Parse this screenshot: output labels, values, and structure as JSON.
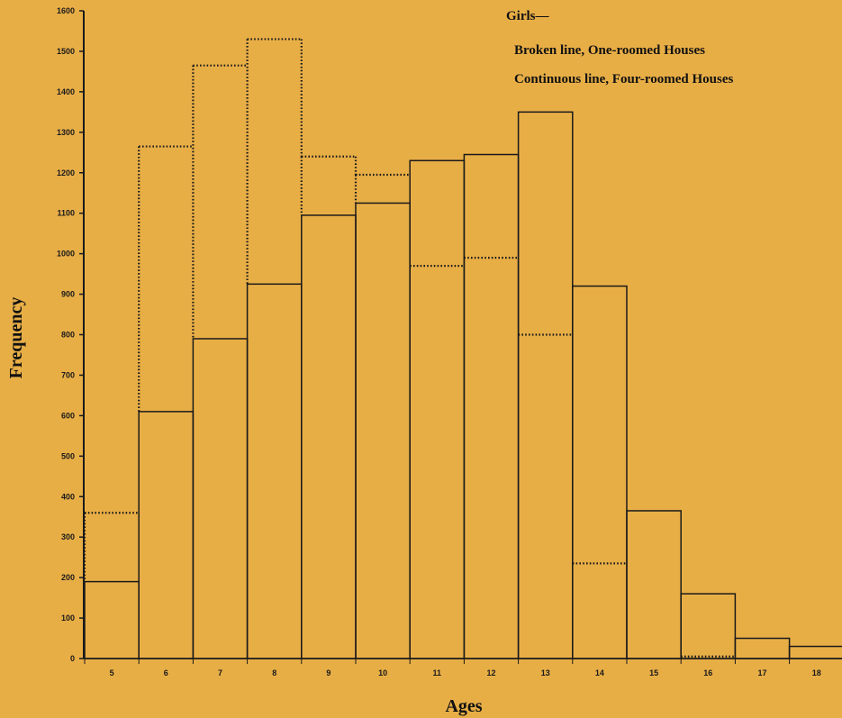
{
  "chart_data": {
    "type": "bar",
    "title": "",
    "xlabel": "Ages",
    "ylabel": "Frequency",
    "ylim": [
      0,
      1600
    ],
    "yticks": [
      0,
      100,
      200,
      300,
      400,
      500,
      600,
      700,
      800,
      900,
      1000,
      1100,
      1200,
      1300,
      1400,
      1500,
      1600
    ],
    "categories": [
      "5",
      "6",
      "7",
      "8",
      "9",
      "10",
      "11",
      "12",
      "13",
      "14",
      "15",
      "16",
      "17",
      "18"
    ],
    "legend": {
      "heading": "Girls—",
      "entries": [
        "Broken line, One-roomed Houses",
        "Continuous line, Four-roomed Houses"
      ],
      "placement": "top-right"
    },
    "series": [
      {
        "name": "Broken line, One-roomed Houses",
        "style": "dotted",
        "values": [
          360,
          1265,
          1465,
          1530,
          1240,
          1195,
          970,
          990,
          800,
          235,
          null,
          5,
          null,
          null
        ]
      },
      {
        "name": "Continuous line, Four-roomed Houses",
        "style": "solid",
        "values": [
          190,
          610,
          790,
          925,
          1095,
          1125,
          1230,
          1245,
          1350,
          920,
          365,
          160,
          50,
          30
        ]
      }
    ],
    "colors": {
      "background": "#e8ae46",
      "ink": "#1a1a1a"
    }
  }
}
